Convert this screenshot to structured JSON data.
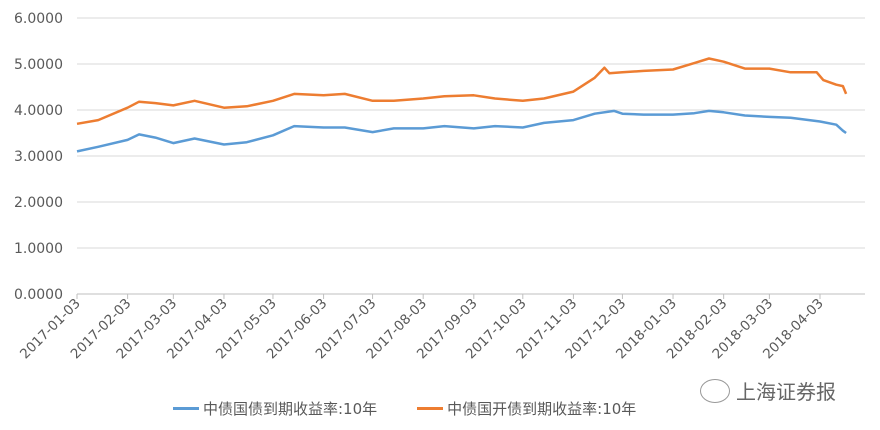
{
  "chart_data": {
    "type": "line",
    "title": "",
    "xlabel": "",
    "ylabel": "",
    "ylim": [
      0,
      6
    ],
    "y_ticks": [
      "0.0000",
      "1.0000",
      "2.0000",
      "3.0000",
      "4.0000",
      "5.0000",
      "6.0000"
    ],
    "x_ticks": [
      "2017-01-03",
      "2017-02-03",
      "2017-03-03",
      "2017-04-03",
      "2017-05-03",
      "2017-06-03",
      "2017-07-03",
      "2017-08-03",
      "2017-09-03",
      "2017-10-03",
      "2017-11-03",
      "2017-12-03",
      "2018-01-03",
      "2018-02-03",
      "2018-03-03",
      "2018-04-03"
    ],
    "grid": true,
    "legend": "bottom",
    "series": [
      {
        "name": "中债国债到期收益率:10年",
        "color": "#5B9BD5",
        "points": [
          [
            "2017-01-03",
            3.1
          ],
          [
            "2017-01-16",
            3.2
          ],
          [
            "2017-02-03",
            3.35
          ],
          [
            "2017-02-10",
            3.47
          ],
          [
            "2017-02-20",
            3.4
          ],
          [
            "2017-03-03",
            3.28
          ],
          [
            "2017-03-16",
            3.38
          ],
          [
            "2017-04-03",
            3.25
          ],
          [
            "2017-04-17",
            3.3
          ],
          [
            "2017-05-03",
            3.45
          ],
          [
            "2017-05-16",
            3.65
          ],
          [
            "2017-06-03",
            3.62
          ],
          [
            "2017-06-16",
            3.62
          ],
          [
            "2017-07-03",
            3.52
          ],
          [
            "2017-07-16",
            3.6
          ],
          [
            "2017-08-03",
            3.6
          ],
          [
            "2017-08-16",
            3.65
          ],
          [
            "2017-09-03",
            3.6
          ],
          [
            "2017-09-16",
            3.65
          ],
          [
            "2017-10-03",
            3.62
          ],
          [
            "2017-10-16",
            3.72
          ],
          [
            "2017-11-03",
            3.78
          ],
          [
            "2017-11-16",
            3.92
          ],
          [
            "2017-11-28",
            3.98
          ],
          [
            "2017-12-03",
            3.92
          ],
          [
            "2017-12-16",
            3.9
          ],
          [
            "2018-01-03",
            3.9
          ],
          [
            "2018-01-16",
            3.93
          ],
          [
            "2018-01-25",
            3.98
          ],
          [
            "2018-02-03",
            3.95
          ],
          [
            "2018-02-16",
            3.88
          ],
          [
            "2018-03-03",
            3.85
          ],
          [
            "2018-03-16",
            3.83
          ],
          [
            "2018-04-03",
            3.75
          ],
          [
            "2018-04-13",
            3.68
          ],
          [
            "2018-04-17",
            3.55
          ],
          [
            "2018-04-19",
            3.5
          ]
        ]
      },
      {
        "name": "中债国开债到期收益率:10年",
        "color": "#ED7D31",
        "points": [
          [
            "2017-01-03",
            3.7
          ],
          [
            "2017-01-16",
            3.78
          ],
          [
            "2017-02-03",
            4.05
          ],
          [
            "2017-02-10",
            4.18
          ],
          [
            "2017-02-20",
            4.15
          ],
          [
            "2017-03-03",
            4.1
          ],
          [
            "2017-03-16",
            4.2
          ],
          [
            "2017-04-03",
            4.05
          ],
          [
            "2017-04-17",
            4.08
          ],
          [
            "2017-05-03",
            4.2
          ],
          [
            "2017-05-16",
            4.35
          ],
          [
            "2017-06-03",
            4.32
          ],
          [
            "2017-06-16",
            4.35
          ],
          [
            "2017-07-03",
            4.2
          ],
          [
            "2017-07-16",
            4.2
          ],
          [
            "2017-08-03",
            4.25
          ],
          [
            "2017-08-16",
            4.3
          ],
          [
            "2017-09-03",
            4.32
          ],
          [
            "2017-09-16",
            4.25
          ],
          [
            "2017-10-03",
            4.2
          ],
          [
            "2017-10-16",
            4.25
          ],
          [
            "2017-11-03",
            4.4
          ],
          [
            "2017-11-16",
            4.7
          ],
          [
            "2017-11-22",
            4.92
          ],
          [
            "2017-11-25",
            4.8
          ],
          [
            "2017-12-03",
            4.82
          ],
          [
            "2017-12-16",
            4.85
          ],
          [
            "2018-01-03",
            4.88
          ],
          [
            "2018-01-16",
            5.02
          ],
          [
            "2018-01-25",
            5.12
          ],
          [
            "2018-02-03",
            5.05
          ],
          [
            "2018-02-16",
            4.9
          ],
          [
            "2018-03-03",
            4.9
          ],
          [
            "2018-03-16",
            4.82
          ],
          [
            "2018-04-01",
            4.82
          ],
          [
            "2018-04-05",
            4.65
          ],
          [
            "2018-04-13",
            4.55
          ],
          [
            "2018-04-17",
            4.52
          ],
          [
            "2018-04-19",
            4.35
          ]
        ]
      }
    ]
  },
  "brand": {
    "text": "上海证券报",
    "icon": "wechat-icon"
  }
}
